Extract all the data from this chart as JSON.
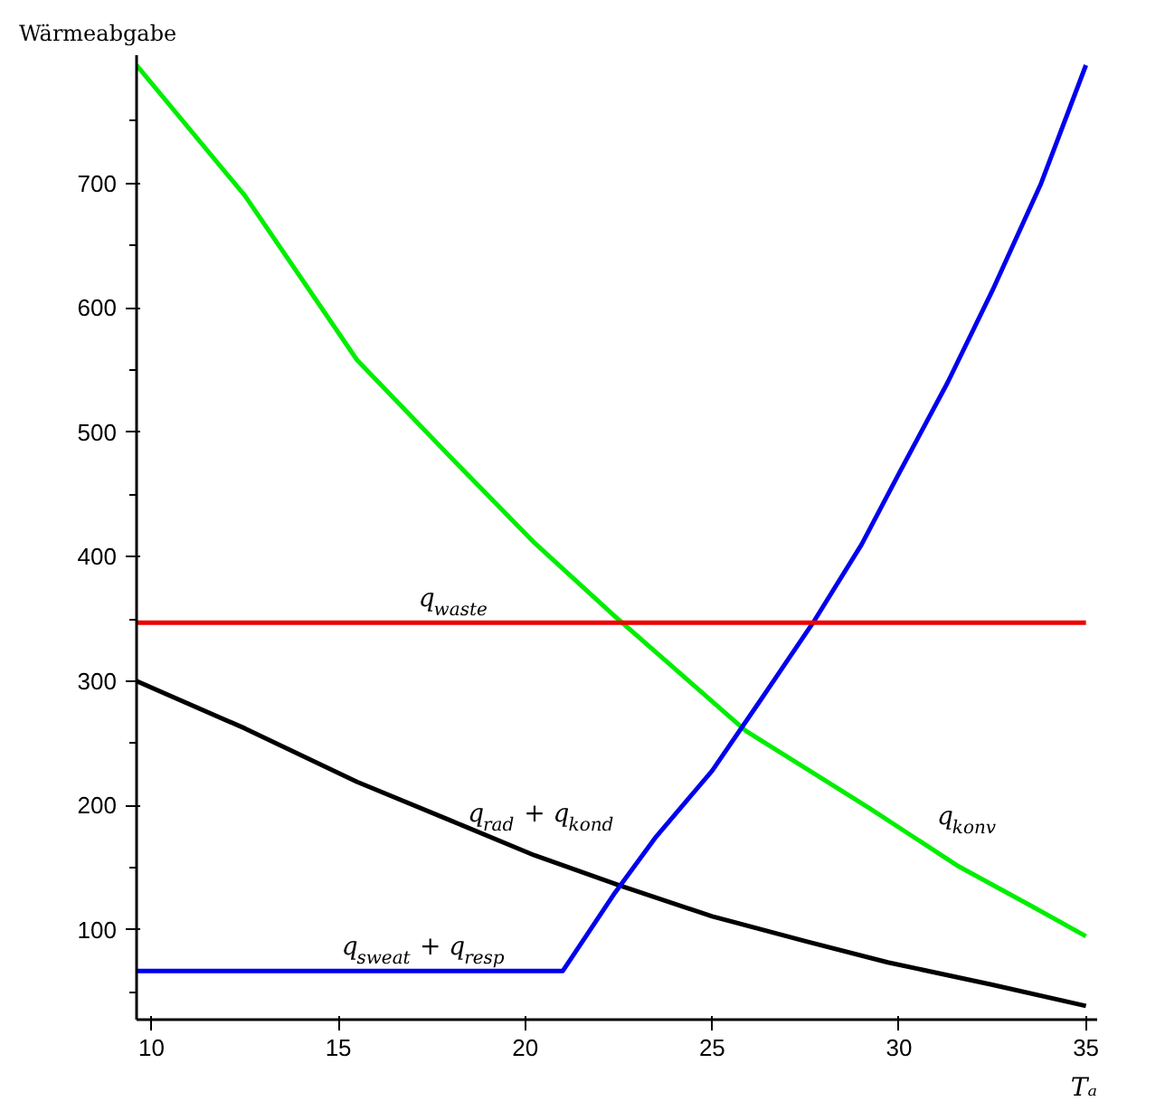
{
  "chart_data": {
    "type": "line",
    "xlabel": "Tₐ",
    "ylabel": "Wärmeabgabe",
    "xlim": [
      9.6,
      35.3
    ],
    "ylim": [
      28,
      803
    ],
    "xticks": [
      10,
      15,
      20,
      25,
      30,
      35
    ],
    "yticks": [
      100,
      200,
      300,
      400,
      500,
      600,
      700
    ],
    "grid": false,
    "marker": "none",
    "line_style": "solid",
    "series": [
      {
        "name": "q$_{konv}$",
        "color": "#00ee00",
        "x": [
          9.6,
          12.5,
          15.5,
          18,
          20.25,
          22.4,
          24,
          25.9,
          27.5,
          29.2,
          31.6,
          33.5,
          35
        ],
        "values": [
          795,
          690,
          558,
          480,
          411,
          352,
          310,
          260,
          230,
          198,
          151,
          120,
          95
        ]
      },
      {
        "name": "q$_{rad}$ + q$_{kond}$",
        "color": "#000000",
        "x": [
          9.6,
          12.5,
          15.5,
          18,
          20.25,
          22.5,
          25,
          27.5,
          29.7,
          32.5,
          35
        ],
        "values": [
          300,
          262,
          219,
          188,
          160,
          136,
          111,
          91,
          74,
          56,
          39
        ]
      },
      {
        "name": "q$_{sweat}$ + q$_{resp}$",
        "color": "#0000ee",
        "x": [
          9.6,
          21,
          22.4,
          23.5,
          25,
          26.3,
          27.7,
          29,
          30,
          31.3,
          32.5,
          33.8,
          35
        ],
        "values": [
          67,
          67,
          130,
          175,
          228,
          285,
          347,
          410,
          467,
          540,
          614,
          700,
          795
        ]
      },
      {
        "name": "q$_{waste}$",
        "color": "#ee0000",
        "x": [
          9.6,
          35
        ],
        "values": [
          347,
          347
        ]
      }
    ]
  }
}
